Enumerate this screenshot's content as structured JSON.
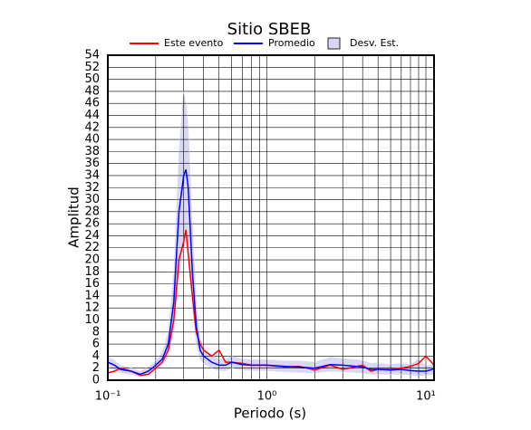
{
  "chart_data": {
    "type": "line",
    "title": "Sitio SBEB",
    "x_label": "Periodo (s)",
    "y_label": "Amplitud",
    "log_x": true,
    "grid": true,
    "xlim": [
      0.1,
      11.25
    ],
    "ylim": [
      0,
      54
    ],
    "xticks": [
      {
        "value": 0.1,
        "label": "10⁻¹"
      },
      {
        "value": 1,
        "label": "10⁰"
      },
      {
        "value": 10,
        "label": "10¹"
      }
    ],
    "xgrid": [
      0.2,
      0.3,
      0.4,
      0.5,
      0.6,
      0.7,
      0.8,
      0.9,
      2,
      3,
      4,
      5,
      6,
      7,
      8,
      9
    ],
    "yticks": [
      0,
      2,
      4,
      6,
      8,
      10,
      12,
      14,
      16,
      18,
      20,
      22,
      24,
      26,
      28,
      30,
      32,
      34,
      36,
      38,
      40,
      42,
      44,
      46,
      48,
      50,
      52,
      54
    ],
    "x": [
      0.1,
      0.11,
      0.12,
      0.14,
      0.16,
      0.18,
      0.2,
      0.22,
      0.24,
      0.26,
      0.28,
      0.3,
      0.31,
      0.32,
      0.34,
      0.36,
      0.38,
      0.4,
      0.45,
      0.5,
      0.55,
      0.6,
      0.7,
      0.8,
      1,
      1.3,
      1.6,
      2,
      2.5,
      3,
      4,
      4.5,
      5,
      6,
      7,
      8,
      9,
      10,
      11,
      11.25
    ],
    "series": [
      {
        "name": "Desv. Est.",
        "kind": "band",
        "color": "#d8d8f4",
        "stroke": "#222222",
        "lower": [
          2,
          1.8,
          1.2,
          1,
          0.6,
          1,
          1.8,
          2.5,
          4,
          8,
          17,
          22,
          23,
          21,
          12,
          6,
          3.5,
          2.8,
          2,
          1.6,
          1.6,
          2,
          1.7,
          1.6,
          1.6,
          1.4,
          1.3,
          1.2,
          1.5,
          1.4,
          1.2,
          1,
          1,
          1,
          1,
          0.9,
          0.8,
          0.8,
          1,
          1.2
        ],
        "upper": [
          4,
          3.3,
          2.5,
          2,
          1.5,
          2.2,
          3.2,
          4.8,
          8,
          18,
          38,
          48,
          46,
          42,
          26,
          13,
          7,
          5.5,
          4.2,
          3.5,
          3.4,
          4,
          3.5,
          3.4,
          3.4,
          3.2,
          3.2,
          3,
          3.8,
          3.6,
          3.3,
          2.8,
          2.8,
          2.6,
          2.8,
          2.6,
          3.5,
          2.4,
          2.6,
          3
        ]
      },
      {
        "name": "Este evento",
        "kind": "line",
        "color": "#ff0000",
        "values": [
          1.2,
          1.5,
          2,
          1.5,
          0.8,
          1,
          2,
          3,
          5,
          10,
          20,
          23,
          25,
          21,
          14,
          8,
          6,
          5,
          4,
          5,
          3,
          3,
          2.8,
          2.5,
          2.5,
          2.2,
          2.3,
          1.7,
          2.5,
          1.8,
          2.5,
          1.5,
          1.8,
          1.8,
          2,
          2.3,
          2.8,
          4,
          2.8,
          2.5
        ]
      },
      {
        "name": "Promedio",
        "kind": "line",
        "color": "#0000ff",
        "values": [
          3,
          2.5,
          1.8,
          1.5,
          1,
          1.5,
          2.5,
          3.5,
          6,
          13,
          28,
          34,
          35,
          32,
          18,
          9,
          5,
          4,
          3,
          2.5,
          2.5,
          3,
          2.6,
          2.5,
          2.5,
          2.3,
          2.2,
          2,
          2.6,
          2.5,
          2.2,
          1.8,
          1.8,
          1.7,
          1.8,
          1.6,
          1.5,
          1.5,
          1.8,
          2
        ]
      }
    ]
  }
}
